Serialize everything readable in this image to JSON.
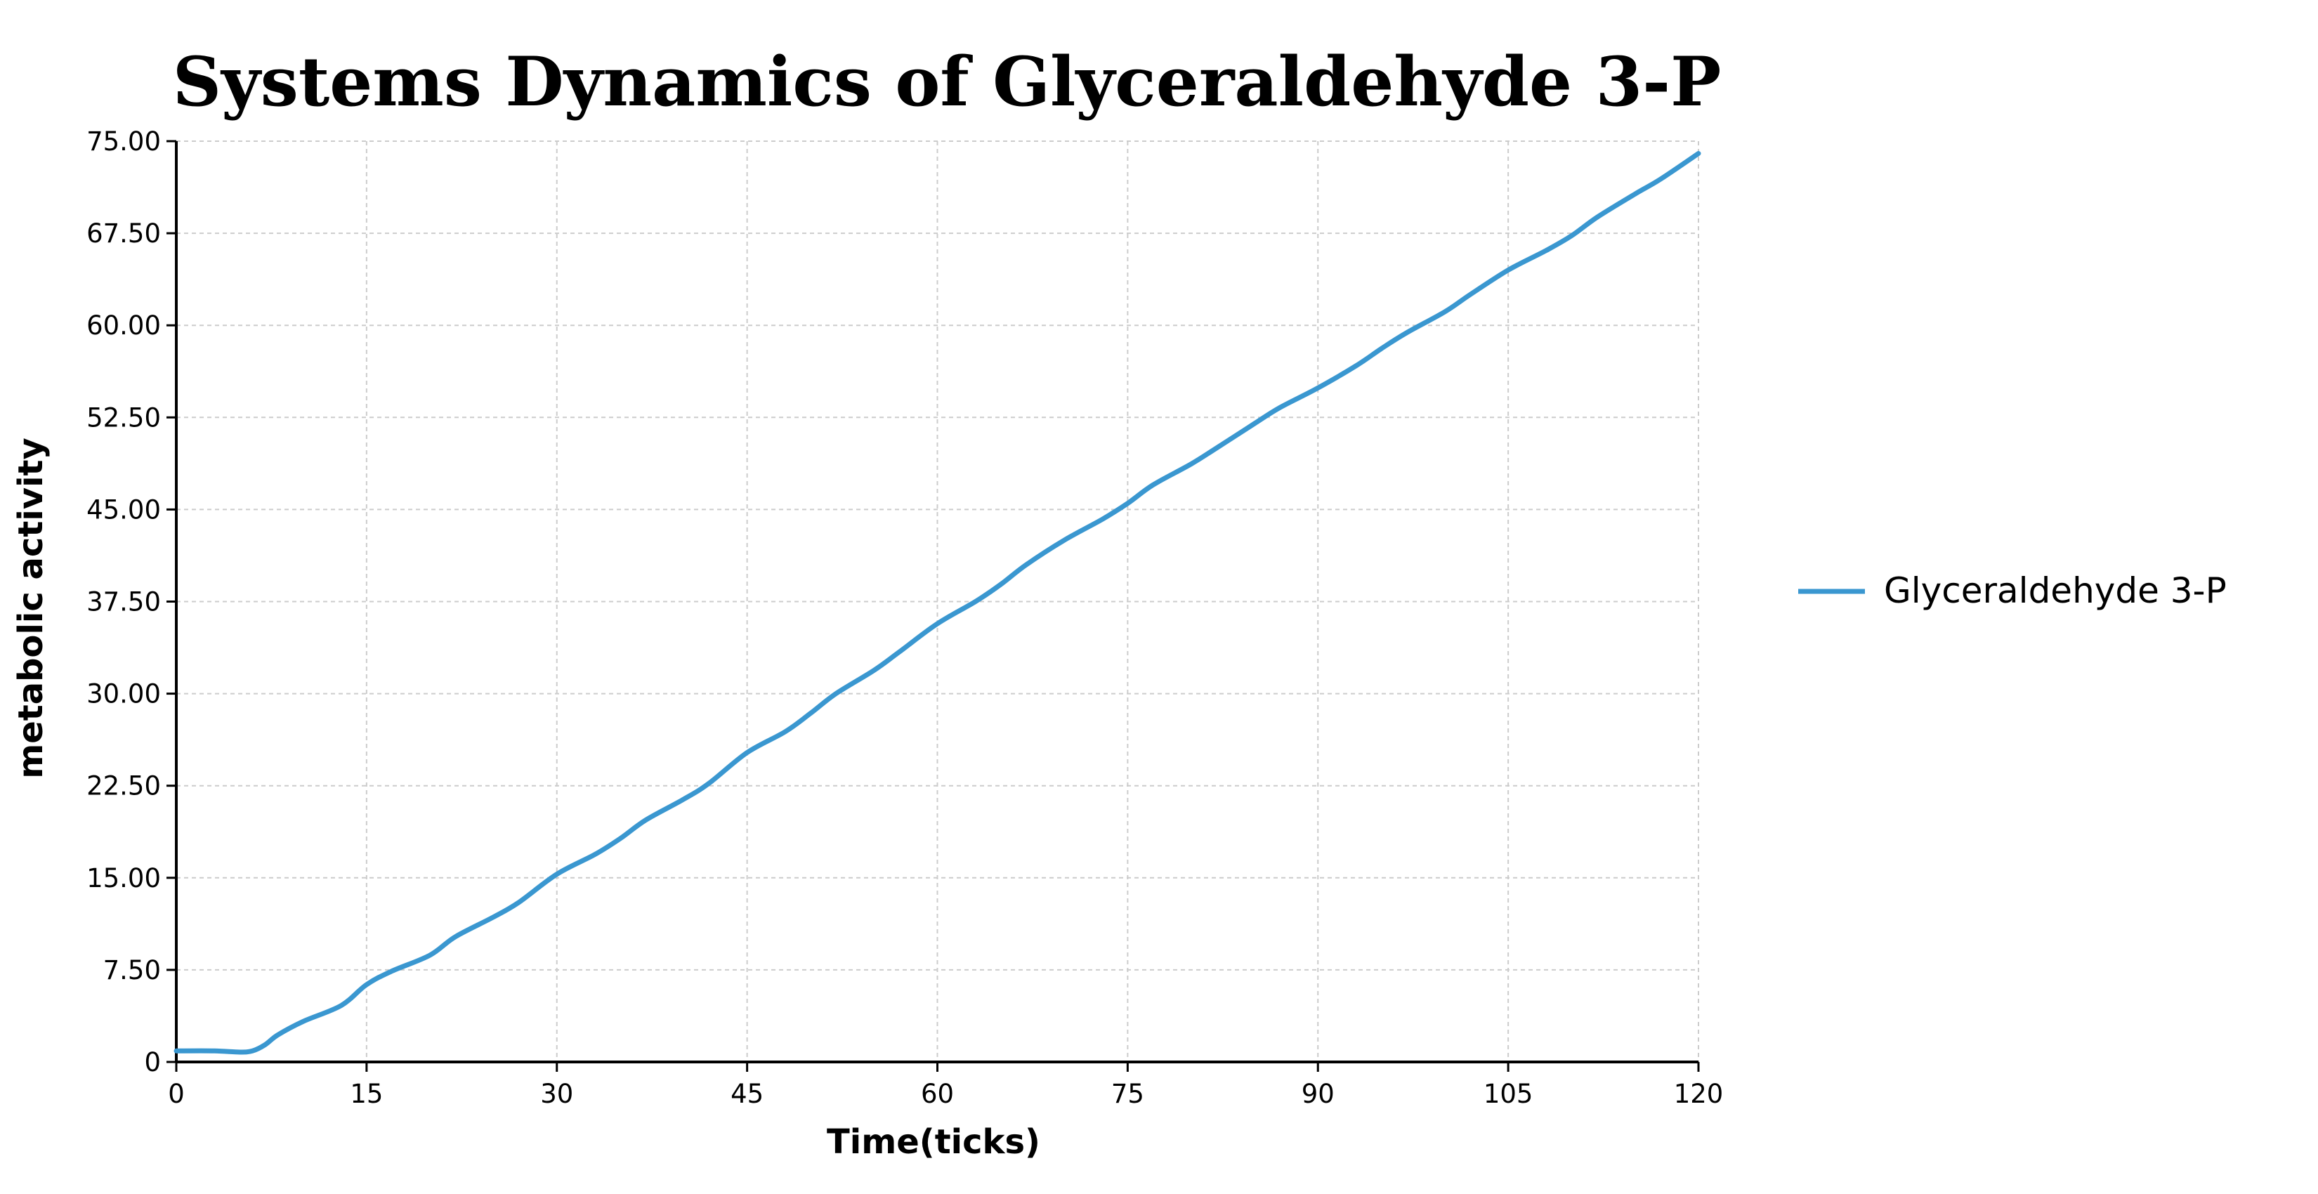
{
  "chart_data": {
    "type": "line",
    "title": "Systems Dynamics of Glyceraldehyde 3-P",
    "xlabel": "Time(ticks)",
    "ylabel": "metabolic activity",
    "xlim": [
      0,
      120
    ],
    "ylim": [
      0,
      75
    ],
    "x_ticks": [
      0,
      15,
      30,
      45,
      60,
      75,
      90,
      105,
      120
    ],
    "x_tick_labels": [
      "0",
      "15",
      "30",
      "45",
      "60",
      "75",
      "90",
      "105",
      "120"
    ],
    "y_ticks": [
      0,
      7.5,
      15,
      22.5,
      30,
      37.5,
      45,
      52.5,
      60,
      67.5,
      75
    ],
    "y_tick_labels": [
      "0",
      "7.50",
      "15.00",
      "22.50",
      "30.00",
      "37.50",
      "45.00",
      "52.50",
      "60.00",
      "67.50",
      "75.00"
    ],
    "grid": true,
    "legend_position": "right",
    "series": [
      {
        "name": "Glyceraldehyde 3-P",
        "color": "#3a97d0",
        "x": [
          0,
          3,
          5,
          6,
          7,
          8,
          10,
          13,
          15,
          17,
          20,
          22,
          25,
          27,
          30,
          33,
          35,
          37,
          40,
          42,
          45,
          48,
          50,
          52,
          55,
          57,
          60,
          63,
          65,
          67,
          70,
          73,
          75,
          77,
          80,
          82,
          85,
          87,
          90,
          93,
          95,
          97,
          100,
          102,
          105,
          108,
          110,
          112,
          115,
          117,
          120
        ],
        "y": [
          0.9,
          0.9,
          0.8,
          0.9,
          1.4,
          2.2,
          3.3,
          4.6,
          6.3,
          7.4,
          8.7,
          10.2,
          11.8,
          13.0,
          15.3,
          16.9,
          18.2,
          19.7,
          21.4,
          22.7,
          25.2,
          26.9,
          28.4,
          30.0,
          31.9,
          33.4,
          35.7,
          37.5,
          38.9,
          40.5,
          42.5,
          44.2,
          45.5,
          47.0,
          48.7,
          50.0,
          52.0,
          53.3,
          54.9,
          56.7,
          58.1,
          59.4,
          61.1,
          62.5,
          64.5,
          66.1,
          67.3,
          68.8,
          70.7,
          71.9,
          74.0
        ]
      }
    ]
  }
}
